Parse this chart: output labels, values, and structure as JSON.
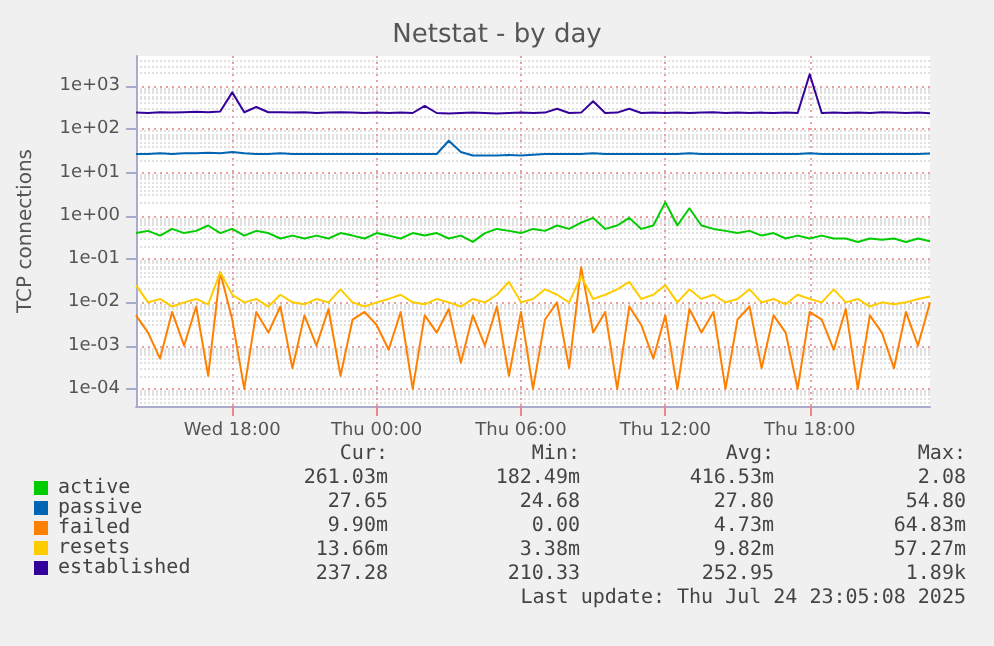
{
  "chart_data": {
    "type": "line",
    "title": "Netstat - by day",
    "ylabel": "TCP connections",
    "x": [
      "2025-07-23T14:00",
      "2025-07-23T14:30",
      "2025-07-23T15:00",
      "2025-07-23T15:30",
      "2025-07-23T16:00",
      "2025-07-23T16:30",
      "2025-07-23T17:00",
      "2025-07-23T17:30",
      "2025-07-23T18:00",
      "2025-07-23T18:30",
      "2025-07-23T19:00",
      "2025-07-23T19:30",
      "2025-07-23T20:00",
      "2025-07-23T20:30",
      "2025-07-23T21:00",
      "2025-07-23T21:30",
      "2025-07-23T22:00",
      "2025-07-23T22:30",
      "2025-07-23T23:00",
      "2025-07-23T23:30",
      "2025-07-24T00:00",
      "2025-07-24T00:30",
      "2025-07-24T01:00",
      "2025-07-24T01:30",
      "2025-07-24T02:00",
      "2025-07-24T02:30",
      "2025-07-24T03:00",
      "2025-07-24T03:30",
      "2025-07-24T04:00",
      "2025-07-24T04:30",
      "2025-07-24T05:00",
      "2025-07-24T05:30",
      "2025-07-24T06:00",
      "2025-07-24T06:30",
      "2025-07-24T07:00",
      "2025-07-24T07:30",
      "2025-07-24T08:00",
      "2025-07-24T08:30",
      "2025-07-24T09:00",
      "2025-07-24T09:30",
      "2025-07-24T10:00",
      "2025-07-24T10:30",
      "2025-07-24T11:00",
      "2025-07-24T11:30",
      "2025-07-24T12:00",
      "2025-07-24T12:30",
      "2025-07-24T13:00",
      "2025-07-24T13:30",
      "2025-07-24T14:00",
      "2025-07-24T14:30",
      "2025-07-24T15:00",
      "2025-07-24T15:30",
      "2025-07-24T16:00",
      "2025-07-24T16:30",
      "2025-07-24T17:00",
      "2025-07-24T17:30",
      "2025-07-24T18:00",
      "2025-07-24T18:30",
      "2025-07-24T19:00",
      "2025-07-24T19:30",
      "2025-07-24T20:00",
      "2025-07-24T20:30",
      "2025-07-24T21:00",
      "2025-07-24T21:30",
      "2025-07-24T22:00",
      "2025-07-24T22:30",
      "2025-07-24T23:00"
    ],
    "series": [
      {
        "name": "active",
        "color": "#00cc00",
        "values": [
          0.4,
          0.45,
          0.35,
          0.5,
          0.4,
          0.45,
          0.6,
          0.4,
          0.5,
          0.35,
          0.45,
          0.4,
          0.3,
          0.35,
          0.3,
          0.35,
          0.3,
          0.4,
          0.35,
          0.3,
          0.4,
          0.35,
          0.3,
          0.4,
          0.35,
          0.4,
          0.3,
          0.35,
          0.25,
          0.4,
          0.5,
          0.45,
          0.4,
          0.5,
          0.45,
          0.6,
          0.5,
          0.7,
          0.9,
          0.5,
          0.6,
          0.9,
          0.5,
          0.6,
          2.08,
          0.6,
          1.5,
          0.6,
          0.5,
          0.45,
          0.4,
          0.45,
          0.35,
          0.4,
          0.3,
          0.35,
          0.3,
          0.35,
          0.3,
          0.3,
          0.25,
          0.3,
          0.28,
          0.3,
          0.25,
          0.3,
          0.26
        ]
      },
      {
        "name": "passive",
        "color": "#0066b3",
        "values": [
          27,
          27,
          28,
          27,
          28,
          28,
          29,
          28,
          30,
          28,
          27,
          27,
          28,
          27,
          27,
          27,
          27,
          27,
          27,
          27,
          27,
          27,
          27,
          27,
          27,
          27,
          54.8,
          30,
          25,
          25,
          25,
          25.5,
          25,
          26,
          27,
          27,
          27,
          27,
          28,
          27,
          27,
          27,
          27,
          27,
          27,
          27,
          28,
          27,
          27,
          27,
          27,
          27,
          27,
          27,
          27,
          27,
          28,
          27,
          27,
          27,
          27,
          27,
          27,
          27,
          27,
          27,
          27.65
        ]
      },
      {
        "name": "failed",
        "color": "#ff8000",
        "values": [
          0.005,
          0.002,
          0.0005,
          0.006,
          0.001,
          0.008,
          0.0002,
          0.05,
          0.004,
          0.0001,
          0.006,
          0.002,
          0.008,
          0.0003,
          0.005,
          0.001,
          0.007,
          0.0002,
          0.004,
          0.006,
          0.003,
          0.0008,
          0.006,
          0.0001,
          0.005,
          0.002,
          0.007,
          0.0004,
          0.005,
          0.001,
          0.008,
          0.0002,
          0.006,
          0.0001,
          0.004,
          0.01,
          0.0003,
          0.065,
          0.002,
          0.006,
          0.0001,
          0.008,
          0.003,
          0.0005,
          0.005,
          0.0001,
          0.007,
          0.002,
          0.006,
          0.0001,
          0.004,
          0.008,
          0.0003,
          0.005,
          0.002,
          0.0001,
          0.006,
          0.004,
          0.0008,
          0.007,
          0.0001,
          0.005,
          0.002,
          0.0003,
          0.006,
          0.001,
          0.0099
        ]
      },
      {
        "name": "resets",
        "color": "#ffcc00",
        "values": [
          0.025,
          0.01,
          0.012,
          0.008,
          0.01,
          0.012,
          0.009,
          0.05,
          0.015,
          0.01,
          0.012,
          0.008,
          0.015,
          0.01,
          0.009,
          0.012,
          0.01,
          0.02,
          0.01,
          0.008,
          0.01,
          0.012,
          0.015,
          0.01,
          0.009,
          0.012,
          0.01,
          0.008,
          0.012,
          0.01,
          0.015,
          0.03,
          0.01,
          0.012,
          0.02,
          0.015,
          0.01,
          0.04,
          0.012,
          0.015,
          0.02,
          0.03,
          0.012,
          0.015,
          0.025,
          0.01,
          0.02,
          0.012,
          0.015,
          0.01,
          0.012,
          0.02,
          0.01,
          0.012,
          0.009,
          0.015,
          0.012,
          0.01,
          0.02,
          0.01,
          0.012,
          0.008,
          0.01,
          0.009,
          0.01,
          0.012,
          0.0137
        ]
      },
      {
        "name": "established",
        "color": "#330099",
        "values": [
          245,
          240,
          250,
          245,
          250,
          255,
          250,
          260,
          720,
          250,
          330,
          250,
          250,
          245,
          250,
          240,
          245,
          250,
          245,
          240,
          245,
          240,
          245,
          240,
          350,
          240,
          235,
          240,
          245,
          240,
          235,
          240,
          245,
          240,
          245,
          300,
          240,
          245,
          450,
          240,
          245,
          300,
          240,
          245,
          240,
          245,
          240,
          245,
          250,
          240,
          245,
          240,
          245,
          240,
          245,
          240,
          1890,
          240,
          245,
          240,
          245,
          240,
          250,
          245,
          240,
          245,
          237
        ]
      }
    ],
    "xlim": [
      "2025-07-23T14:00",
      "2025-07-24T23:00"
    ],
    "xticks": [
      {
        "value": "2025-07-23T18:00",
        "label": "Wed 18:00"
      },
      {
        "value": "2025-07-24T00:00",
        "label": "Thu 00:00"
      },
      {
        "value": "2025-07-24T06:00",
        "label": "Thu 06:00"
      },
      {
        "value": "2025-07-24T12:00",
        "label": "Thu 12:00"
      },
      {
        "value": "2025-07-24T18:00",
        "label": "Thu 18:00"
      }
    ],
    "log": "y",
    "ylim": [
      4e-05,
      5000
    ],
    "yticks": [
      {
        "value": 0.0001,
        "label": "1e-04"
      },
      {
        "value": 0.001,
        "label": "1e-03"
      },
      {
        "value": 0.01,
        "label": "1e-02"
      },
      {
        "value": 0.1,
        "label": "1e-01"
      },
      {
        "value": 1,
        "label": "1e+00"
      },
      {
        "value": 10,
        "label": "1e+01"
      },
      {
        "value": 100,
        "label": "1e+02"
      },
      {
        "value": 1000,
        "label": "1e+03"
      }
    ],
    "grid": true,
    "legend": "bottom left",
    "annotations": [
      "Cur:",
      "Min:",
      "Avg:",
      "Max:",
      "261.03m",
      "182.49m",
      "416.53m",
      "2.08",
      "27.65",
      "24.68",
      "27.80",
      "54.80",
      "9.90m",
      "0.00",
      "4.73m",
      "64.83m",
      "13.66m",
      "3.38m",
      "9.82m",
      "57.27m",
      "237.28",
      "210.33",
      "252.95",
      "1.89k",
      "Last update: Thu Jul 24 23:05:08 2025"
    ]
  }
}
